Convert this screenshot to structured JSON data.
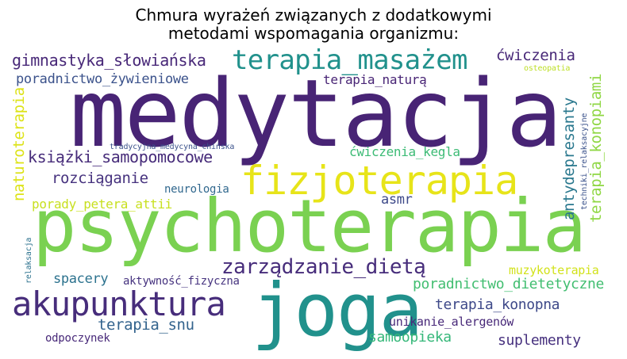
{
  "title_line1": "Chmura wyrażeń związanych z dodatkowymi",
  "title_line2": "metodami wspomagania organizmu:",
  "words": {
    "medytacja": {
      "text": "medytacja",
      "color": "#482475"
    },
    "psychoterapia": {
      "text": "psychoterapia",
      "color": "#7ad151"
    },
    "fizjoterapia": {
      "text": "fizjoterapia",
      "color": "#e7e419"
    },
    "joga": {
      "text": "joga",
      "color": "#21918c"
    },
    "akupunktura": {
      "text": "akupunktura",
      "color": "#472d7b"
    },
    "terapia_masazem": {
      "text": "terapia_masażem",
      "color": "#21918c"
    },
    "zarzadzanie_dieta": {
      "text": "zarządzanie_dietą",
      "color": "#472d7b"
    },
    "gimnastyka": {
      "text": "gimnastyka_słowiańska",
      "color": "#482878"
    },
    "ksiazki": {
      "text": "książki_samopomocowe",
      "color": "#472c7a"
    },
    "poradnictwo_zyw": {
      "text": "poradnictwo_żywieniowe",
      "color": "#3b528b"
    },
    "terapia_natura": {
      "text": "terapia_naturą",
      "color": "#482475"
    },
    "cwiczenia": {
      "text": "ćwiczenia",
      "color": "#482878"
    },
    "cwiczenia_kegla": {
      "text": "ćwiczenia_kegla",
      "color": "#3cbb75"
    },
    "rozciaganie": {
      "text": "rozciąganie",
      "color": "#46327e"
    },
    "neurologia": {
      "text": "neurologia",
      "color": "#31688e"
    },
    "asmr": {
      "text": "asmr",
      "color": "#3e4a89"
    },
    "porady": {
      "text": "porady_petera_attii",
      "color": "#c8e020"
    },
    "antydepresanty": {
      "text": "antydepresanty",
      "color": "#2a788e"
    },
    "terapia_konopiami": {
      "text": "terapia_konopiami",
      "color": "#8fd744"
    },
    "naturoterapia": {
      "text": "naturoterapia",
      "color": "#dde318"
    },
    "tradycyjna": {
      "text": "tradycyjna_medycyna_chińska",
      "color": "#3b528b"
    },
    "osteopatia": {
      "text": "osteopatia",
      "color": "#bddf26"
    },
    "techniki": {
      "text": "techniki_relaksacyjne",
      "color": "#3b528b"
    },
    "relaksacja": {
      "text": "relaksacja",
      "color": "#2c728e"
    },
    "spacery": {
      "text": "spacery",
      "color": "#2c728e"
    },
    "aktywnosc": {
      "text": "aktywność_fizyczna",
      "color": "#46337f"
    },
    "muzykoterapia": {
      "text": "muzykoterapia",
      "color": "#d2e21b"
    },
    "poradnictwo_diet": {
      "text": "poradnictwo_dietetyczne",
      "color": "#42be71"
    },
    "terapia_konopna": {
      "text": "terapia_konopna",
      "color": "#3e4989"
    },
    "unikanie": {
      "text": "unikanie_alergenów",
      "color": "#482979"
    },
    "terapia_snu": {
      "text": "terapia_snu",
      "color": "#33638d"
    },
    "samoopieka": {
      "text": "samoopieka",
      "color": "#35b779"
    },
    "suplementy": {
      "text": "suplementy",
      "color": "#46307e"
    },
    "odpoczynek": {
      "text": "odpoczynek",
      "color": "#482979"
    }
  }
}
